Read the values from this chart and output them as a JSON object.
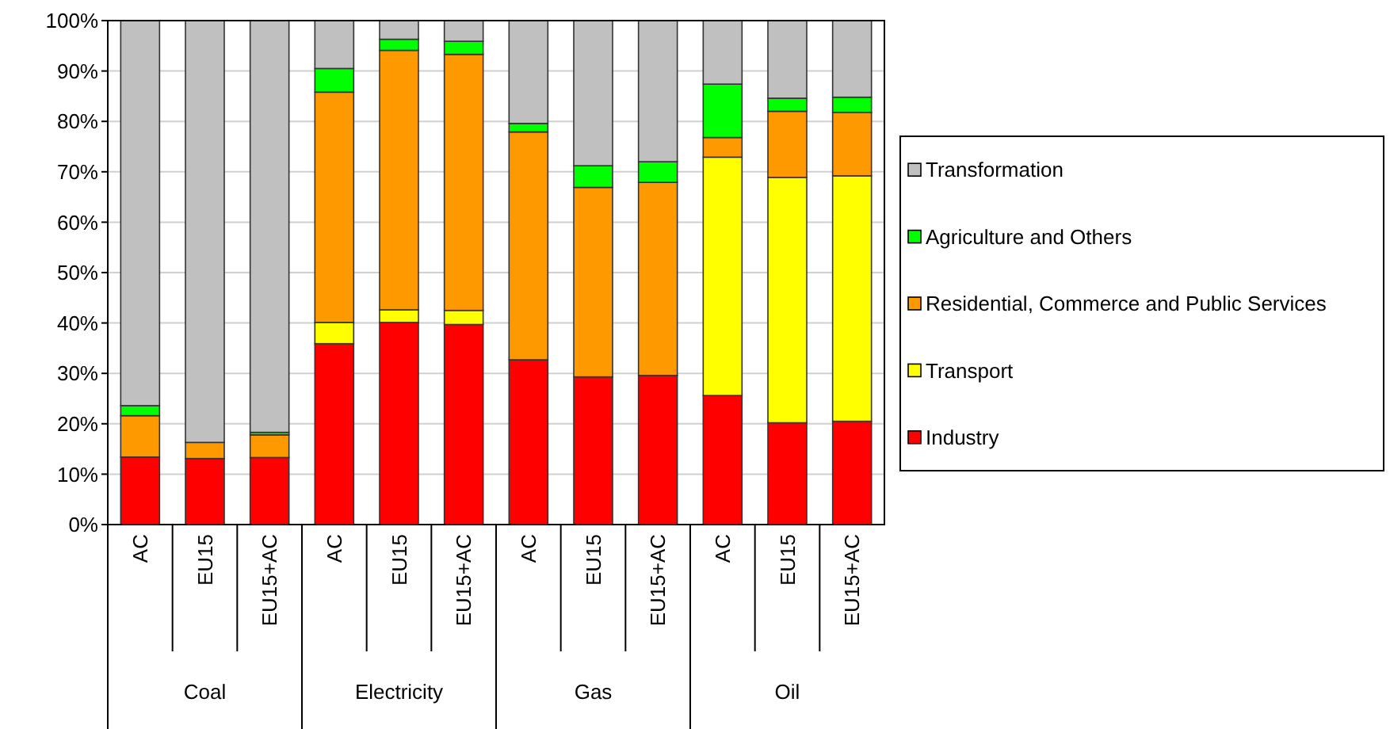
{
  "chart_data": {
    "type": "bar",
    "stacked": true,
    "categories": [
      "AC",
      "EU15",
      "EU15+AC",
      "AC",
      "EU15",
      "EU15+AC",
      "AC",
      "EU15",
      "EU15+AC",
      "AC",
      "EU15",
      "EU15+AC"
    ],
    "annotations": [
      "Coal",
      "Electricity",
      "Gas",
      "Oil"
    ],
    "series": [
      {
        "name": "Industry",
        "color": "#ff0000",
        "values": [
          13.4,
          13.1,
          13.3,
          35.9,
          40.1,
          39.7,
          32.7,
          29.3,
          29.6,
          25.6,
          20.2,
          20.5
        ]
      },
      {
        "name": "Transport",
        "color": "#ffff00",
        "values": [
          0,
          0,
          0,
          4.2,
          2.5,
          2.8,
          0,
          0,
          0,
          47.3,
          48.7,
          48.7
        ]
      },
      {
        "name": "Residential, Commerce and Public Services",
        "color": "#ff9900",
        "values": [
          8.2,
          3.2,
          4.5,
          45.7,
          51.5,
          50.8,
          45.2,
          37.6,
          38.3,
          3.9,
          13.1,
          12.6
        ]
      },
      {
        "name": "Agriculture and Others",
        "color": "#00ff00",
        "values": [
          2.0,
          0,
          0.5,
          4.7,
          2.2,
          2.6,
          1.7,
          4.3,
          4.1,
          10.6,
          2.6,
          3.0
        ]
      },
      {
        "name": "Transformation",
        "color": "#c0c0c0",
        "values": [
          76.4,
          83.7,
          81.7,
          9.5,
          3.7,
          4.1,
          20.4,
          28.8,
          28.0,
          12.6,
          15.4,
          15.2
        ]
      }
    ],
    "ylim": [
      0,
      100
    ],
    "yticks": [
      {
        "value": 0,
        "label": "0%"
      },
      {
        "value": 10,
        "label": "10%"
      },
      {
        "value": 20,
        "label": "20%"
      },
      {
        "value": 30,
        "label": "30%"
      },
      {
        "value": 40,
        "label": "40%"
      },
      {
        "value": 50,
        "label": "50%"
      },
      {
        "value": 60,
        "label": "60%"
      },
      {
        "value": 70,
        "label": "70%"
      },
      {
        "value": 80,
        "label": "80%"
      },
      {
        "value": 90,
        "label": "90%"
      },
      {
        "value": 100,
        "label": "100%"
      }
    ],
    "grid": "y",
    "legend": "right"
  }
}
